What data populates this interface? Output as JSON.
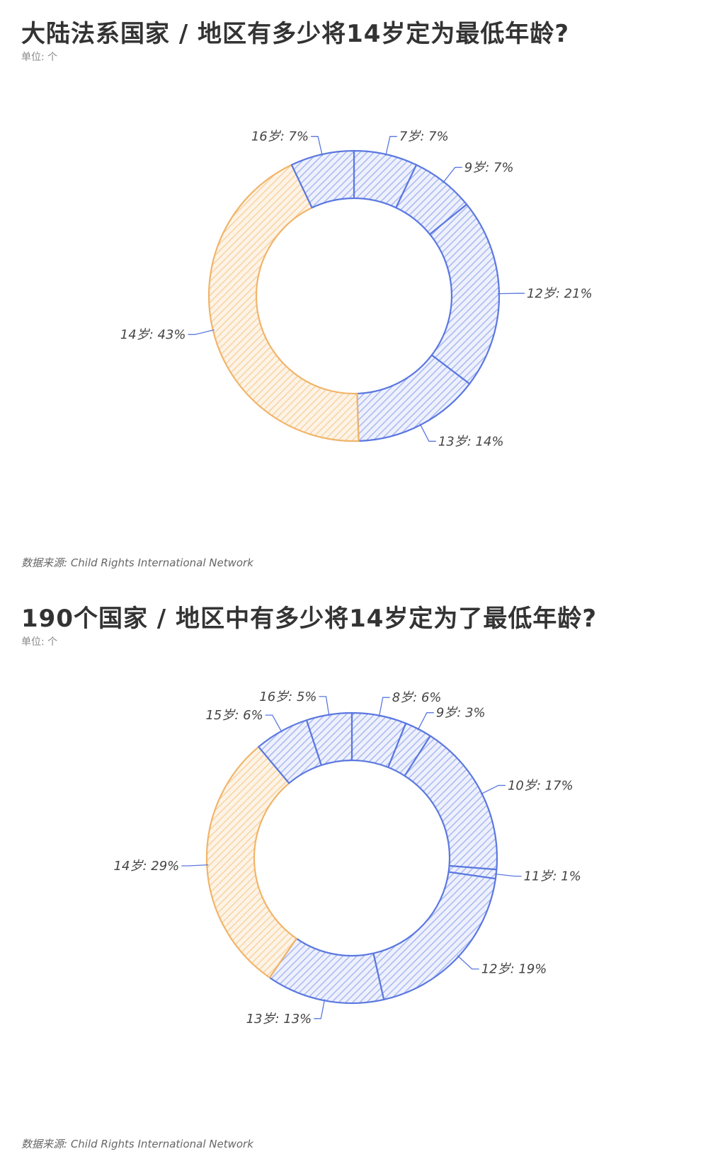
{
  "charts": [
    {
      "title": "大陆法系国家 / 地区有多少将14岁定为最低年龄?",
      "unit": "单位: 个",
      "source": "数据来源: Child Rights International Network"
    },
    {
      "title": "190个国家 / 地区中有多少将14岁定为了最低年龄?",
      "unit": "单位: 个",
      "source": "数据来源: Child Rights International Network"
    }
  ],
  "colors": {
    "blue": "#5b78e0",
    "blue_fill": "#a9b9f0",
    "orange": "#f0b56a",
    "orange_fill": "#f8d3a3"
  },
  "chart_data": [
    {
      "type": "donut",
      "title": "大陆法系国家 / 地区有多少将14岁定为最低年龄?",
      "categories": [
        "7岁",
        "9岁",
        "12岁",
        "13岁",
        "14岁",
        "16岁"
      ],
      "values": [
        7,
        7,
        21,
        14,
        43,
        7
      ],
      "labels": [
        "7岁: 7%",
        "9岁: 7%",
        "12岁: 21%",
        "13岁: 14%",
        "14岁: 43%",
        "16岁: 7%"
      ],
      "highlight": "14岁"
    },
    {
      "type": "donut",
      "title": "190个国家 / 地区中有多少将14岁定为了最低年龄?",
      "categories": [
        "8岁",
        "9岁",
        "10岁",
        "11岁",
        "12岁",
        "13岁",
        "14岁",
        "15岁",
        "16岁"
      ],
      "values": [
        6,
        3,
        17,
        1,
        19,
        13,
        29,
        6,
        5
      ],
      "labels": [
        "8岁: 6%",
        "9岁: 3%",
        "10岁: 17%",
        "11岁: 1%",
        "12岁: 19%",
        "13岁: 13%",
        "14岁: 29%",
        "15岁: 6%",
        "16岁: 5%"
      ],
      "highlight": "14岁"
    }
  ]
}
